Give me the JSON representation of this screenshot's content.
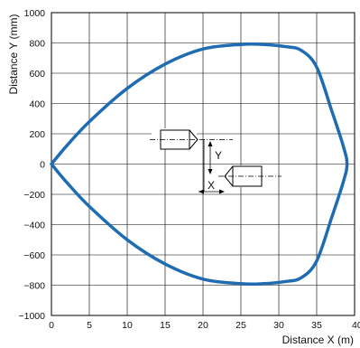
{
  "chart_data": {
    "type": "line",
    "xlabel": "Distance X (m)",
    "ylabel": "Distance Y (mm)",
    "xlim": [
      0,
      40
    ],
    "ylim": [
      -1000,
      1000
    ],
    "x_ticks": [
      "0",
      "5",
      "10",
      "15",
      "20",
      "25",
      "30",
      "35",
      "40"
    ],
    "y_ticks": [
      "1000",
      "800",
      "600",
      "400",
      "200",
      "0",
      "−200",
      "−400",
      "−600",
      "−800",
      "−1000"
    ],
    "grid": true,
    "line_color": "#1f6cb3",
    "series": [
      {
        "x": [
          0,
          2,
          5,
          10,
          15,
          20,
          25,
          28,
          31,
          33,
          35,
          37,
          38.5,
          39,
          38.5,
          37,
          35,
          33,
          31,
          28,
          25,
          20,
          15,
          10,
          5,
          2,
          0
        ],
        "y": [
          0,
          120,
          280,
          500,
          660,
          760,
          790,
          790,
          775,
          750,
          640,
          350,
          120,
          0,
          -120,
          -350,
          -640,
          -750,
          -775,
          -790,
          -790,
          -760,
          -660,
          -500,
          -280,
          -120,
          0
        ]
      }
    ],
    "diagram": {
      "x_label": "X",
      "y_label": "Y"
    }
  }
}
